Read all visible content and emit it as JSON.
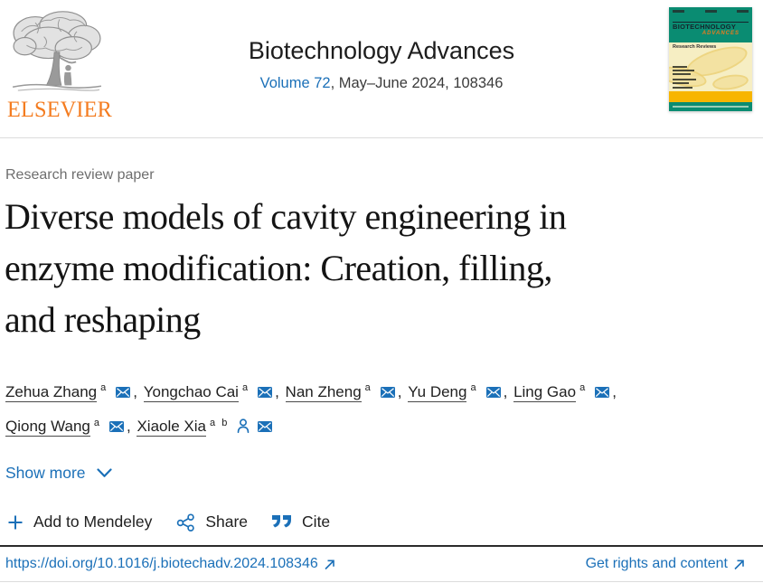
{
  "header": {
    "publisher": "ELSEVIER",
    "journal_title": "Biotechnology Advances",
    "volume_link": "Volume 72",
    "issue_info": ", May–June 2024, 108346",
    "cover": {
      "title_line1": "BIOTECHNOLOGY",
      "title_line2": "ADVANCES",
      "subtitle": "Research Reviews"
    }
  },
  "article": {
    "type_label": "Research review paper",
    "title": "Diverse models of cavity engineering in enzyme modification: Creation, filling, and reshaping",
    "title_lines": {
      "0": "Diverse models of cavity engineering in",
      "1": "enzyme modification: Creation, filling,",
      "2": "and reshaping"
    },
    "authors": [
      {
        "name": "Zehua Zhang",
        "sup": "a",
        "icons": [
          "email"
        ]
      },
      {
        "name": "Yongchao Cai",
        "sup": "a",
        "icons": [
          "email"
        ]
      },
      {
        "name": "Nan Zheng",
        "sup": "a",
        "icons": [
          "email"
        ]
      },
      {
        "name": "Yu Deng",
        "sup": "a",
        "icons": [
          "email"
        ]
      },
      {
        "name": "Ling Gao",
        "sup": "a",
        "icons": [
          "email"
        ],
        "break_after": true
      },
      {
        "name": "Qiong Wang",
        "sup": "a",
        "icons": [
          "email"
        ]
      },
      {
        "name": "Xiaole Xia",
        "sup": "a b",
        "icons": [
          "person",
          "email"
        ]
      }
    ],
    "show_more_label": "Show more",
    "actions": {
      "mendeley": "Add to Mendeley",
      "share": "Share",
      "cite": "Cite"
    },
    "doi": "https://doi.org/10.1016/j.biotechadv.2024.108346",
    "rights_link": "Get rights and content"
  },
  "colors": {
    "link_blue": "#1b70b8",
    "elsevier_orange": "#f47c20",
    "cover_teal": "#0a8c72",
    "cover_yellow": "#f6eec3",
    "cover_orange_band": "#f7b500",
    "text_dark": "#212121",
    "label_gray": "#6e6e6e"
  }
}
